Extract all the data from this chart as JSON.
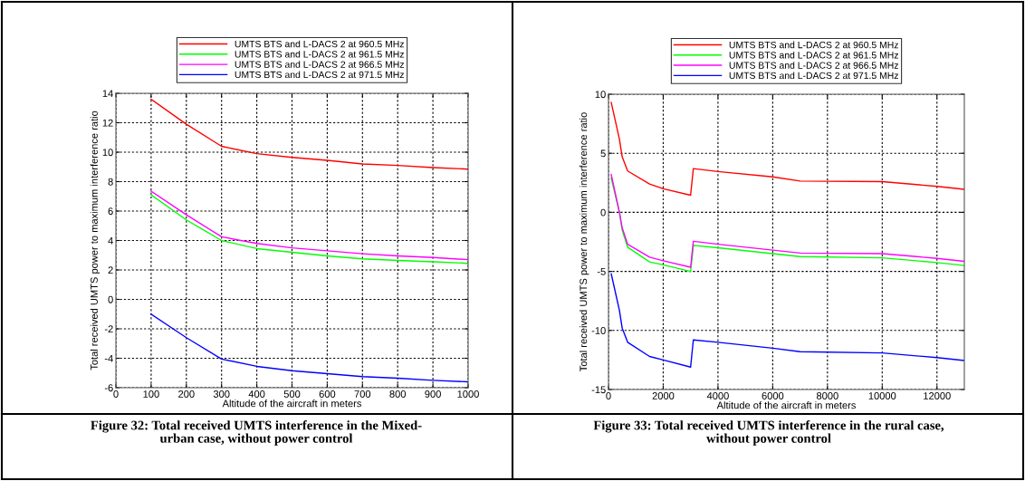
{
  "chart_data": [
    {
      "type": "line",
      "xlabel": "Altitude of the aircraft in meters",
      "ylabel": "Total received UMTS power to maximum interference ratio",
      "x": [
        100,
        200,
        300,
        400,
        500,
        600,
        700,
        800,
        900,
        1000
      ],
      "xlim": [
        0,
        1000
      ],
      "xticks": [
        0,
        100,
        200,
        300,
        400,
        500,
        600,
        700,
        800,
        900,
        1000
      ],
      "ylim": [
        -6,
        14
      ],
      "yticks": [
        -6,
        -4,
        -2,
        0,
        2,
        4,
        6,
        8,
        10,
        12,
        14
      ],
      "grid": true,
      "legend": "top",
      "annotations": [
        "Figure 32: Total received UMTS interference in the Mixed-\nurban case, without power control"
      ],
      "series": [
        {
          "name": "UMTS BTS and L-DACS 2 at 960.5 MHz",
          "color": "#ff0000",
          "values": [
            13.6,
            11.9,
            10.4,
            9.9,
            9.65,
            9.45,
            9.2,
            9.1,
            8.95,
            8.85
          ]
        },
        {
          "name": "UMTS BTS and L-DACS 2 at 961.5 MHz",
          "color": "#00ff00",
          "values": [
            7.1,
            5.4,
            4.0,
            3.45,
            3.2,
            2.95,
            2.75,
            2.65,
            2.55,
            2.45
          ]
        },
        {
          "name": "UMTS BTS and L-DACS 2 at 966.5 MHz",
          "color": "#ff00ff",
          "values": [
            7.35,
            5.75,
            4.25,
            3.8,
            3.5,
            3.3,
            3.1,
            2.95,
            2.85,
            2.7
          ]
        },
        {
          "name": "UMTS BTS and L-DACS 2 at 971.5 MHz",
          "color": "#0000ff",
          "values": [
            -1.0,
            -2.6,
            -4.05,
            -4.55,
            -4.85,
            -5.05,
            -5.25,
            -5.35,
            -5.5,
            -5.6
          ]
        }
      ]
    },
    {
      "type": "line",
      "xlabel": "Altitude of the aircraft in meters",
      "ylabel": "Total received UMTS power to maximum interference ratio",
      "x": [
        100,
        400,
        500,
        700,
        1500,
        2000,
        3000,
        3100,
        4000,
        6000,
        7000,
        10000,
        12000,
        13000
      ],
      "xlim": [
        0,
        13000
      ],
      "xticks": [
        0,
        2000,
        4000,
        6000,
        8000,
        10000,
        12000
      ],
      "ylim": [
        -15,
        10
      ],
      "yticks": [
        -15,
        -10,
        -5,
        0,
        5,
        10
      ],
      "grid": true,
      "legend": "top",
      "annotations": [
        "Figure 33: Total received UMTS interference in the rural case,\nwithout power control"
      ],
      "series": [
        {
          "name": "UMTS BTS and L-DACS 2 at 960.5 MHz",
          "color": "#ff0000",
          "values": [
            9.3,
            6.2,
            4.7,
            3.5,
            2.4,
            2.0,
            1.45,
            3.7,
            3.45,
            3.0,
            2.65,
            2.6,
            2.2,
            1.95
          ]
        },
        {
          "name": "UMTS BTS and L-DACS 2 at 961.5 MHz",
          "color": "#00ff00",
          "values": [
            2.9,
            0,
            -1.5,
            -2.95,
            -4.2,
            -4.45,
            -5.0,
            -2.8,
            -3.0,
            -3.5,
            -3.75,
            -3.85,
            -4.25,
            -4.5
          ]
        },
        {
          "name": "UMTS BTS and L-DACS 2 at 966.5 MHz",
          "color": "#ff00ff",
          "values": [
            3.2,
            0,
            -1.3,
            -2.7,
            -3.8,
            -4.1,
            -4.65,
            -2.45,
            -2.7,
            -3.2,
            -3.45,
            -3.5,
            -3.9,
            -4.15
          ]
        },
        {
          "name": "UMTS BTS and L-DACS 2 at 971.5 MHz",
          "color": "#0000ff",
          "values": [
            -5.2,
            -8.3,
            -9.8,
            -11.0,
            -12.2,
            -12.5,
            -13.1,
            -10.8,
            -11.0,
            -11.5,
            -11.8,
            -11.9,
            -12.3,
            -12.55
          ]
        }
      ]
    }
  ]
}
